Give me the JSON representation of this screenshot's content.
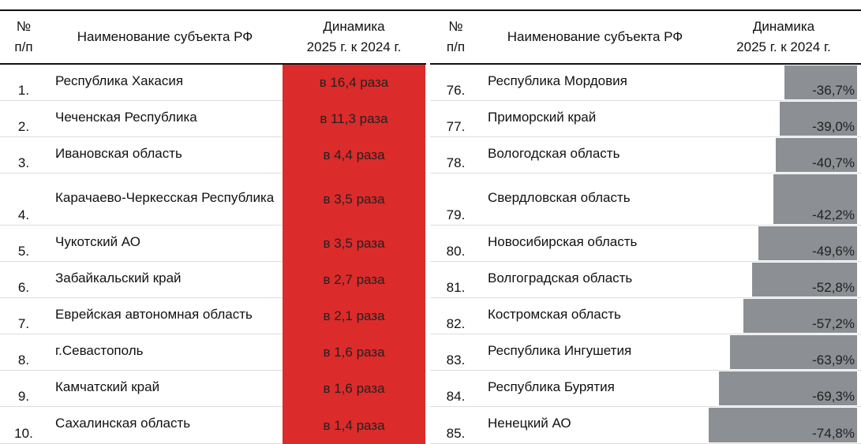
{
  "headers": {
    "num": "№\nп/п",
    "name": "Наименование субъекта РФ",
    "dyn": "Динамика\n2025 г. к 2024 г."
  },
  "colors": {
    "growth": "#dc2b2b",
    "decline": "#8c8f93"
  },
  "chart_data": {
    "type": "table",
    "left": [
      {
        "n": "1.",
        "name": "Республика Хакасия",
        "value": "в 16,4 раза"
      },
      {
        "n": "2.",
        "name": "Чеченская Республика",
        "value": "в 11,3 раза"
      },
      {
        "n": "3.",
        "name": "Ивановская область",
        "value": "в 4,4 раза"
      },
      {
        "n": "4.",
        "name": "Карачаево-Черкесская Республика",
        "value": "в 3,5 раза"
      },
      {
        "n": "5.",
        "name": "Чукотский АО",
        "value": "в 3,5 раза"
      },
      {
        "n": "6.",
        "name": "Забайкальский край",
        "value": "в 2,7 раза"
      },
      {
        "n": "7.",
        "name": "Еврейская автономная область",
        "value": "в 2,1 раза"
      },
      {
        "n": "8.",
        "name": "г.Севастополь",
        "value": "в 1,6 раза"
      },
      {
        "n": "9.",
        "name": "Камчатский край",
        "value": "в 1,6 раза"
      },
      {
        "n": "10.",
        "name": "Сахалинская область",
        "value": "в 1,4 раза"
      }
    ],
    "right": [
      {
        "n": "76.",
        "name": "Республика Мордовия",
        "value": -36.7,
        "label": "-36,7%"
      },
      {
        "n": "77.",
        "name": "Приморский край",
        "value": -39.0,
        "label": "-39,0%"
      },
      {
        "n": "78.",
        "name": "Вологодская область",
        "value": -40.7,
        "label": "-40,7%"
      },
      {
        "n": "79.",
        "name": "Свердловская область",
        "value": -42.2,
        "label": "-42,2%"
      },
      {
        "n": "80.",
        "name": "Новосибирская область",
        "value": -49.6,
        "label": "-49,6%"
      },
      {
        "n": "81.",
        "name": "Волгоградская область",
        "value": -52.8,
        "label": "-52,8%"
      },
      {
        "n": "82.",
        "name": "Костромская область",
        "value": -57.2,
        "label": "-57,2%"
      },
      {
        "n": "83.",
        "name": "Республика Ингушетия",
        "value": -63.9,
        "label": "-63,9%"
      },
      {
        "n": "84.",
        "name": "Республика Бурятия",
        "value": -69.3,
        "label": "-69,3%"
      },
      {
        "n": "85.",
        "name": "Ненецкий АО",
        "value": -74.8,
        "label": "-74,8%"
      }
    ]
  }
}
